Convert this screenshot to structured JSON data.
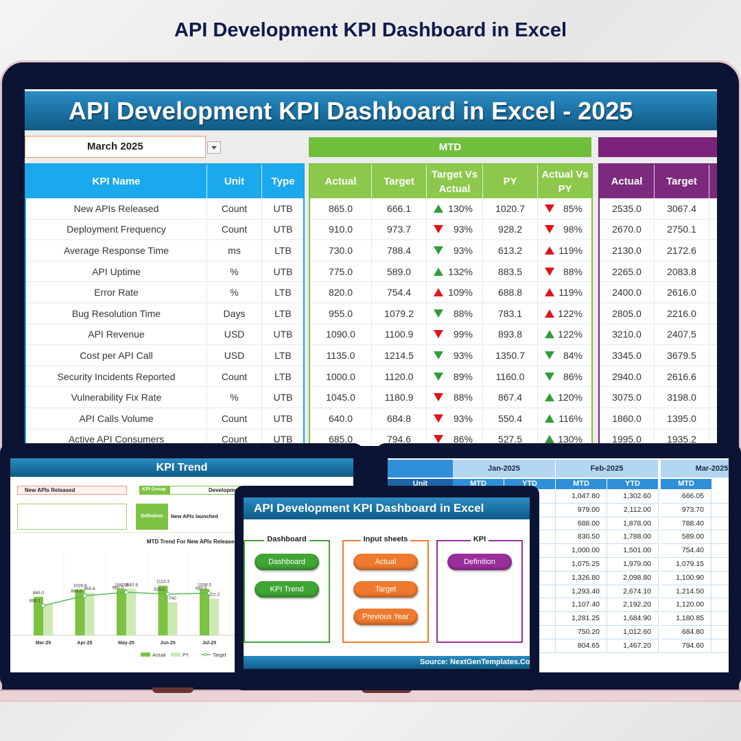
{
  "header": {
    "title": "API Development KPI Dashboard in Excel"
  },
  "dashboard": {
    "title": "API Development KPI Dashboard in Excel - 2025",
    "month": "March 2025",
    "mtd_label": "MTD",
    "kpi_columns": [
      "KPI Name",
      "Unit",
      "Type"
    ],
    "mtd_columns": [
      "Actual",
      "Target",
      "Target Vs Actual",
      "PY",
      "Actual Vs PY"
    ],
    "ytd_columns": [
      "Actual",
      "Target"
    ],
    "good_color": "#2f9e3a",
    "bad_color": "#e3121b",
    "rows": [
      {
        "name": "New APIs Released",
        "unit": "Count",
        "type": "UTB",
        "actual": "865.0",
        "target": "666.1",
        "target_vs_actual": {
          "arrow": "up",
          "good": true,
          "value": "130%"
        },
        "py": "1020.7",
        "actual_vs_py": {
          "arrow": "down",
          "good": false,
          "value": "85%"
        },
        "ytd_actual": "2535.0",
        "ytd_target": "3067.4"
      },
      {
        "name": "Deployment Frequency",
        "unit": "Count",
        "type": "UTB",
        "actual": "910.0",
        "target": "973.7",
        "target_vs_actual": {
          "arrow": "down",
          "good": false,
          "value": "93%"
        },
        "py": "928.2",
        "actual_vs_py": {
          "arrow": "down",
          "good": false,
          "value": "98%"
        },
        "ytd_actual": "2670.0",
        "ytd_target": "2750.1"
      },
      {
        "name": "Average Response Time",
        "unit": "ms",
        "type": "LTB",
        "actual": "730.0",
        "target": "788.4",
        "target_vs_actual": {
          "arrow": "down",
          "good": true,
          "value": "93%"
        },
        "py": "613.2",
        "actual_vs_py": {
          "arrow": "up",
          "good": false,
          "value": "119%"
        },
        "ytd_actual": "2130.0",
        "ytd_target": "2172.6"
      },
      {
        "name": "API Uptime",
        "unit": "%",
        "type": "UTB",
        "actual": "775.0",
        "target": "589.0",
        "target_vs_actual": {
          "arrow": "up",
          "good": true,
          "value": "132%"
        },
        "py": "883.5",
        "actual_vs_py": {
          "arrow": "down",
          "good": false,
          "value": "88%"
        },
        "ytd_actual": "2265.0",
        "ytd_target": "2083.8"
      },
      {
        "name": "Error Rate",
        "unit": "%",
        "type": "LTB",
        "actual": "820.0",
        "target": "754.4",
        "target_vs_actual": {
          "arrow": "up",
          "good": false,
          "value": "109%"
        },
        "py": "688.8",
        "actual_vs_py": {
          "arrow": "up",
          "good": false,
          "value": "119%"
        },
        "ytd_actual": "2400.0",
        "ytd_target": "2616.0"
      },
      {
        "name": "Bug Resolution Time",
        "unit": "Days",
        "type": "LTB",
        "actual": "955.0",
        "target": "1079.2",
        "target_vs_actual": {
          "arrow": "down",
          "good": true,
          "value": "88%"
        },
        "py": "783.1",
        "actual_vs_py": {
          "arrow": "up",
          "good": false,
          "value": "122%"
        },
        "ytd_actual": "2805.0",
        "ytd_target": "2216.0"
      },
      {
        "name": "API Revenue",
        "unit": "USD",
        "type": "UTB",
        "actual": "1090.0",
        "target": "1100.9",
        "target_vs_actual": {
          "arrow": "down",
          "good": false,
          "value": "99%"
        },
        "py": "893.8",
        "actual_vs_py": {
          "arrow": "up",
          "good": true,
          "value": "122%"
        },
        "ytd_actual": "3210.0",
        "ytd_target": "2407.5"
      },
      {
        "name": "Cost per API Call",
        "unit": "USD",
        "type": "LTB",
        "actual": "1135.0",
        "target": "1214.5",
        "target_vs_actual": {
          "arrow": "down",
          "good": true,
          "value": "93%"
        },
        "py": "1350.7",
        "actual_vs_py": {
          "arrow": "down",
          "good": true,
          "value": "84%"
        },
        "ytd_actual": "3345.0",
        "ytd_target": "3679.5"
      },
      {
        "name": "Security Incidents Reported",
        "unit": "Count",
        "type": "LTB",
        "actual": "1000.0",
        "target": "1120.0",
        "target_vs_actual": {
          "arrow": "down",
          "good": true,
          "value": "89%"
        },
        "py": "1160.0",
        "actual_vs_py": {
          "arrow": "down",
          "good": true,
          "value": "86%"
        },
        "ytd_actual": "2940.0",
        "ytd_target": "2616.6"
      },
      {
        "name": "Vulnerability Fix Rate",
        "unit": "%",
        "type": "UTB",
        "actual": "1045.0",
        "target": "1180.9",
        "target_vs_actual": {
          "arrow": "down",
          "good": false,
          "value": "88%"
        },
        "py": "867.4",
        "actual_vs_py": {
          "arrow": "up",
          "good": true,
          "value": "120%"
        },
        "ytd_actual": "3075.0",
        "ytd_target": "3198.0"
      },
      {
        "name": "API Calls Volume",
        "unit": "Count",
        "type": "UTB",
        "actual": "640.0",
        "target": "684.8",
        "target_vs_actual": {
          "arrow": "down",
          "good": false,
          "value": "93%"
        },
        "py": "550.4",
        "actual_vs_py": {
          "arrow": "up",
          "good": true,
          "value": "116%"
        },
        "ytd_actual": "1860.0",
        "ytd_target": "1395.0"
      },
      {
        "name": "Active API Consumers",
        "unit": "Count",
        "type": "UTB",
        "actual": "685.0",
        "target": "794.6",
        "target_vs_actual": {
          "arrow": "down",
          "good": false,
          "value": "86%"
        },
        "py": "527.5",
        "actual_vs_py": {
          "arrow": "up",
          "good": true,
          "value": "130%"
        },
        "ytd_actual": "1995.0",
        "ytd_target": "1935.2"
      }
    ]
  },
  "trend": {
    "title": "KPI Trend",
    "kpi": "New APIs Released",
    "group_label": "KPI Group",
    "group": "Development",
    "definition_label": "Definition",
    "definition": "New APIs launched",
    "chart": {
      "type": "bar",
      "title": "MTD Trend For New APIs Released",
      "categories": [
        "Mar-25",
        "Apr-25",
        "May-25",
        "Jun-25",
        "Jul-25"
      ],
      "series": [
        {
          "name": "Actual",
          "color": "#7dc242",
          "values": [
            865.0,
            1026.6,
            1040.8,
            1113.3,
            1039.5
          ],
          "value_labels": [
            "865.0",
            "1026.6",
            "1040.8",
            "1113.3",
            "1039.5"
          ]
        },
        {
          "name": "PY",
          "color": "#cdeab4",
          "values": [
            700,
            955.8,
            1040.8,
            740,
            822.2
          ],
          "value_labels": [
            null,
            "955.8",
            "1040.8",
            "740",
            "822.2"
          ]
        },
        {
          "name": "Target",
          "type": "line",
          "color": "#5cb85c",
          "values": [
            666.1,
            888.0,
            965.0,
            925.0,
            945.0
          ],
          "value_labels": [
            "666.1",
            "888.0",
            "965.0",
            "925.0",
            "945.0"
          ]
        }
      ],
      "ylim": [
        0,
        1600
      ]
    }
  },
  "input": {
    "months": [
      "Jan-2025",
      "Feb-2025",
      "Mar-2025"
    ],
    "unit_label": "Unit",
    "subheaders": [
      "MTD",
      "YTD",
      "MTD",
      "YTD",
      "MTD"
    ],
    "rows": [
      [
        "1,047.80",
        "1,302.60",
        "666.05"
      ],
      [
        "979.00",
        "2,112.00",
        "973.70"
      ],
      [
        "688.00",
        "1,878.00",
        "788.40"
      ],
      [
        "830.50",
        "1,788.00",
        "589.00"
      ],
      [
        "1,000.00",
        "1,501.00",
        "754.40"
      ],
      [
        "1,075.25",
        "1,979.00",
        "1,079.15"
      ],
      [
        "1,326.80",
        "2,098.80",
        "1,100.90"
      ],
      [
        "1,293.40",
        "2,674.10",
        "1,214.50"
      ],
      [
        "1,107.40",
        "2,192.20",
        "1,120.00"
      ],
      [
        "1,281.25",
        "1,684.90",
        "1,180.85"
      ],
      [
        "750.20",
        "1,012.60",
        "684.80"
      ],
      [
        "804.65",
        "1,467.20",
        "794.60"
      ]
    ]
  },
  "launcher": {
    "title": "API Development KPI Dashboard in Excel",
    "groups": [
      {
        "title": "Dashboard",
        "color": "#3fa535",
        "buttons": [
          "Dashboard",
          "KPI Trend"
        ]
      },
      {
        "title": "Input sheets",
        "color": "#ef7a2e",
        "buttons": [
          "Actual",
          "Target",
          "Previous Year"
        ]
      },
      {
        "title": "KPI",
        "color": "#9a2f9c",
        "buttons": [
          "Definition"
        ]
      }
    ],
    "source": "Source: NextGenTemplates.Com"
  }
}
